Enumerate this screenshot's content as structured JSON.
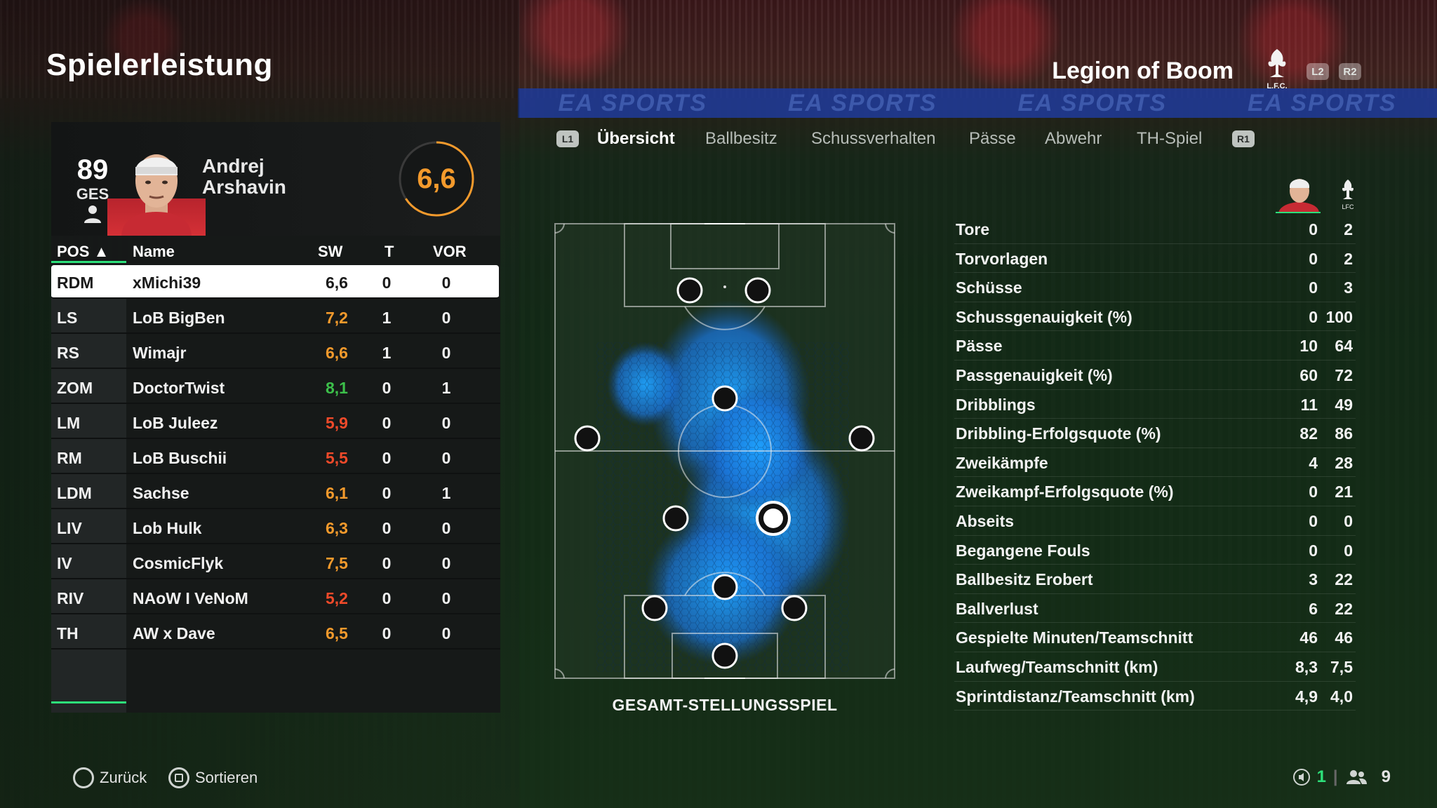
{
  "header": {
    "title": "Spielerleistung",
    "team_name": "Legion of Boom",
    "crest_text": "L.F.C.",
    "l2": "L2",
    "r2": "R2"
  },
  "background": {
    "ad_text": "EA SPORTS"
  },
  "player": {
    "overall": "89",
    "overall_label": "GES",
    "first_name": "Andrej",
    "last_name": "Arshavin",
    "rating": "6,6"
  },
  "table": {
    "columns": {
      "pos": "POS ▲",
      "name": "Name",
      "sw": "SW",
      "t": "T",
      "vor": "VOR"
    },
    "rows": [
      {
        "pos": "RDM",
        "name": "xMichi39",
        "sw": "6,6",
        "t": "0",
        "vor": "0",
        "sw_color": "#1a1a1a"
      },
      {
        "pos": "LS",
        "name": "LoB BigBen",
        "sw": "7,2",
        "t": "1",
        "vor": "0",
        "sw_color": "#f39a2c"
      },
      {
        "pos": "RS",
        "name": "Wimajr",
        "sw": "6,6",
        "t": "1",
        "vor": "0",
        "sw_color": "#f39a2c"
      },
      {
        "pos": "ZOM",
        "name": "DoctorTwist",
        "sw": "8,1",
        "t": "0",
        "vor": "1",
        "sw_color": "#3cbf4a"
      },
      {
        "pos": "LM",
        "name": "LoB Juleez",
        "sw": "5,9",
        "t": "0",
        "vor": "0",
        "sw_color": "#ef4a2a"
      },
      {
        "pos": "RM",
        "name": "LoB Buschii",
        "sw": "5,5",
        "t": "0",
        "vor": "0",
        "sw_color": "#ef4a2a"
      },
      {
        "pos": "LDM",
        "name": "Sachse",
        "sw": "6,1",
        "t": "0",
        "vor": "1",
        "sw_color": "#f39a2c"
      },
      {
        "pos": "LIV",
        "name": "Lob Hulk",
        "sw": "6,3",
        "t": "0",
        "vor": "0",
        "sw_color": "#f39a2c"
      },
      {
        "pos": "IV",
        "name": "CosmicFlyk",
        "sw": "7,5",
        "t": "0",
        "vor": "0",
        "sw_color": "#f39a2c"
      },
      {
        "pos": "RIV",
        "name": "NAoW I VeNoM",
        "sw": "5,2",
        "t": "0",
        "vor": "0",
        "sw_color": "#ef4a2a"
      },
      {
        "pos": "TH",
        "name": "AW x Dave",
        "sw": "6,5",
        "t": "0",
        "vor": "0",
        "sw_color": "#f39a2c"
      }
    ]
  },
  "tabs": {
    "l1": "L1",
    "r1": "R1",
    "items": [
      "Übersicht",
      "Ballbesitz",
      "Schussverhalten",
      "Pässe",
      "Abwehr",
      "TH-Spiel"
    ]
  },
  "pitch": {
    "caption": "GESAMT-STELLUNGSSPIEL"
  },
  "stats": {
    "team_crest_text": "LFC",
    "rows": [
      {
        "label": "Tore",
        "player": "0",
        "team": "2"
      },
      {
        "label": "Torvorlagen",
        "player": "0",
        "team": "2"
      },
      {
        "label": "Schüsse",
        "player": "0",
        "team": "3"
      },
      {
        "label": "Schussgenauigkeit (%)",
        "player": "0",
        "team": "100"
      },
      {
        "label": "Pässe",
        "player": "10",
        "team": "64"
      },
      {
        "label": "Passgenauigkeit (%)",
        "player": "60",
        "team": "72"
      },
      {
        "label": "Dribblings",
        "player": "11",
        "team": "49"
      },
      {
        "label": "Dribbling-Erfolgsquote (%)",
        "player": "82",
        "team": "86"
      },
      {
        "label": "Zweikämpfe",
        "player": "4",
        "team": "28"
      },
      {
        "label": "Zweikampf-Erfolgsquote (%)",
        "player": "0",
        "team": "21"
      },
      {
        "label": "Abseits",
        "player": "0",
        "team": "0"
      },
      {
        "label": "Begangene Fouls",
        "player": "0",
        "team": "0"
      },
      {
        "label": "Ballbesitz Erobert",
        "player": "3",
        "team": "22"
      },
      {
        "label": "Ballverlust",
        "player": "6",
        "team": "22"
      },
      {
        "label": "Gespielte Minuten/Teamschnitt",
        "player": "46",
        "team": "46"
      },
      {
        "label": "Laufweg/Teamschnitt (km)",
        "player": "8,3",
        "team": "7,5"
      },
      {
        "label": "Sprintdistanz/Teamschnitt (km)",
        "player": "4,9",
        "team": "4,0"
      }
    ]
  },
  "footer": {
    "back_label": "Zurück",
    "sort_label": "Sortieren",
    "count_a": "1",
    "count_b": "9"
  },
  "colors": {
    "accent_green": "#2de07a",
    "rating_orange": "#f39a2c",
    "rating_red": "#ef4a2a",
    "rating_green": "#3cbf4a",
    "heat_blue": "#1e8fff"
  }
}
